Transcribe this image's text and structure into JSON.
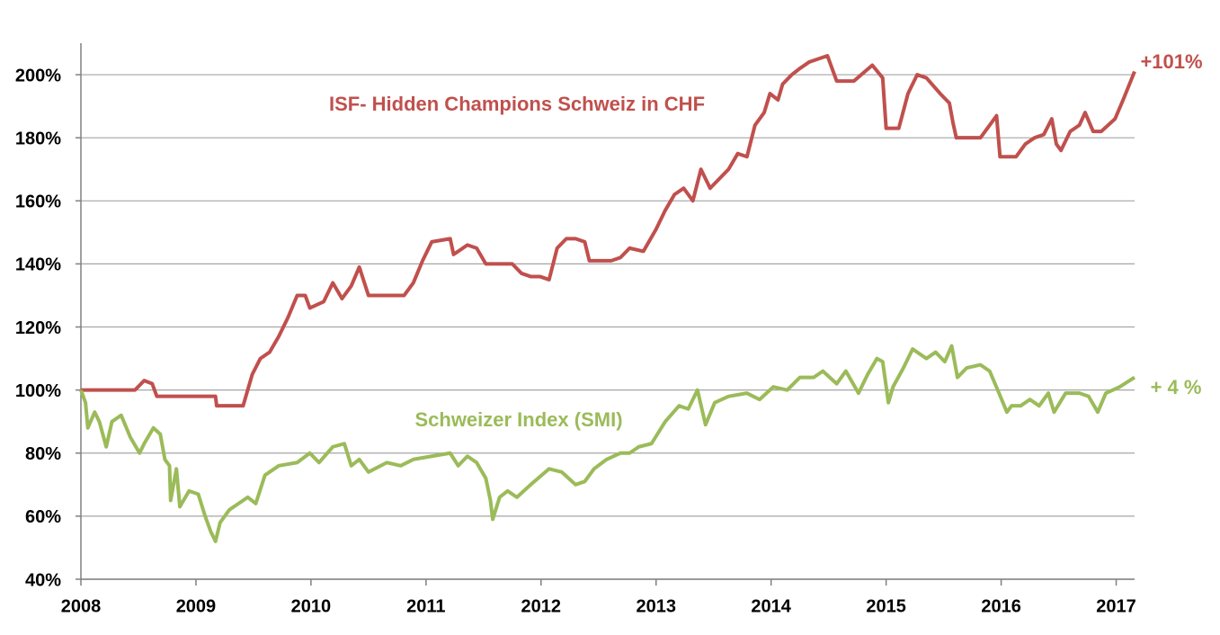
{
  "chart_data": {
    "type": "line",
    "xlim": [
      2008,
      2017.16
    ],
    "xticks": [
      2008,
      2009,
      2010,
      2011,
      2012,
      2013,
      2014,
      2015,
      2016,
      2017
    ],
    "ylim": [
      40,
      210
    ],
    "yticks": [
      {
        "value": 40,
        "label": "40%"
      },
      {
        "value": 60,
        "label": "60%"
      },
      {
        "value": 80,
        "label": "80%"
      },
      {
        "value": 100,
        "label": "100%"
      },
      {
        "value": 120,
        "label": "120%"
      },
      {
        "value": 140,
        "label": "140%"
      },
      {
        "value": 160,
        "label": "160%"
      },
      {
        "value": 180,
        "label": "180%"
      },
      {
        "value": 200,
        "label": "200%"
      }
    ],
    "grid": true,
    "series": [
      {
        "name": "ISF- Hidden Champions Schweiz in CHF",
        "color": "#c0504d",
        "x": [
          2008.0,
          2008.47,
          2008.55,
          2008.62,
          2008.66,
          2009.17,
          2009.18,
          2009.41,
          2009.49,
          2009.56,
          2009.64,
          2009.72,
          2009.8,
          2009.88,
          2009.95,
          2009.99,
          2010.11,
          2010.19,
          2010.27,
          2010.35,
          2010.42,
          2010.5,
          2010.74,
          2010.81,
          2010.89,
          2010.97,
          2011.05,
          2011.21,
          2011.24,
          2011.36,
          2011.44,
          2011.52,
          2011.75,
          2011.83,
          2011.91,
          2011.99,
          2012.07,
          2012.14,
          2012.22,
          2012.3,
          2012.38,
          2012.42,
          2012.61,
          2012.69,
          2012.77,
          2012.89,
          2013.0,
          2013.08,
          2013.16,
          2013.24,
          2013.32,
          2013.39,
          2013.47,
          2013.55,
          2013.63,
          2013.71,
          2013.79,
          2013.86,
          2013.94,
          2013.99,
          2014.06,
          2014.1,
          2014.18,
          2014.25,
          2014.33,
          2014.41,
          2014.49,
          2014.57,
          2014.72,
          2014.88,
          2014.97,
          2015.0,
          2015.11,
          2015.19,
          2015.27,
          2015.35,
          2015.47,
          2015.55,
          2015.58,
          2015.61,
          2015.82,
          2015.9,
          2015.96,
          2015.99,
          2016.13,
          2016.21,
          2016.29,
          2016.37,
          2016.44,
          2016.48,
          2016.52,
          2016.6,
          2016.68,
          2016.73,
          2016.8,
          2016.87,
          2016.99,
          2017.06,
          2017.16
        ],
        "values": [
          100,
          100,
          103,
          102,
          98,
          98,
          95,
          95,
          105,
          110,
          112,
          117,
          123,
          130,
          130,
          126,
          128,
          134,
          129,
          133,
          139,
          130,
          130,
          130,
          134,
          141,
          147,
          148,
          143,
          146,
          145,
          140,
          140,
          137,
          136,
          136,
          135,
          145,
          148,
          148,
          147,
          141,
          141,
          142,
          145,
          144,
          151,
          157,
          162,
          164,
          160,
          170,
          164,
          167,
          170,
          175,
          174,
          184,
          188,
          194,
          192,
          197,
          200,
          202,
          204,
          205,
          206,
          198,
          198,
          203,
          199,
          183,
          183,
          194,
          200,
          199,
          194,
          191,
          185,
          180,
          180,
          184,
          187,
          174,
          174,
          178,
          180,
          181,
          186,
          178,
          176,
          182,
          184,
          188,
          182,
          182,
          186,
          192,
          201
        ]
      },
      {
        "name": "Schweizer Index (SMI)",
        "color": "#9bbb59",
        "x": [
          2008.0,
          2008.04,
          2008.06,
          2008.12,
          2008.16,
          2008.22,
          2008.27,
          2008.35,
          2008.43,
          2008.51,
          2008.55,
          2008.63,
          2008.69,
          2008.73,
          2008.77,
          2008.78,
          2008.83,
          2008.86,
          2008.94,
          2009.02,
          2009.08,
          2009.13,
          2009.17,
          2009.21,
          2009.29,
          2009.37,
          2009.45,
          2009.52,
          2009.6,
          2009.72,
          2009.88,
          2009.99,
          2010.07,
          2010.19,
          2010.29,
          2010.35,
          2010.42,
          2010.5,
          2010.66,
          2010.78,
          2010.89,
          2011.05,
          2011.21,
          2011.28,
          2011.36,
          2011.44,
          2011.52,
          2011.56,
          2011.58,
          2011.64,
          2011.71,
          2011.79,
          2011.91,
          2012.07,
          2012.18,
          2012.3,
          2012.38,
          2012.46,
          2012.57,
          2012.69,
          2012.77,
          2012.85,
          2012.96,
          2013.08,
          2013.2,
          2013.28,
          2013.36,
          2013.43,
          2013.51,
          2013.63,
          2013.79,
          2013.9,
          2014.02,
          2014.14,
          2014.25,
          2014.37,
          2014.45,
          2014.57,
          2014.65,
          2014.76,
          2014.84,
          2014.92,
          2014.97,
          2015.02,
          2015.06,
          2015.15,
          2015.23,
          2015.35,
          2015.43,
          2015.51,
          2015.57,
          2015.62,
          2015.7,
          2015.82,
          2015.9,
          2015.97,
          2016.05,
          2016.09,
          2016.17,
          2016.25,
          2016.33,
          2016.41,
          2016.46,
          2016.56,
          2016.68,
          2016.76,
          2016.84,
          2016.91,
          2017.03,
          2017.16
        ],
        "values": [
          100,
          96,
          88,
          93,
          90,
          82,
          90,
          92,
          85,
          80,
          83,
          88,
          86,
          78,
          76,
          65,
          75,
          63,
          68,
          67,
          60,
          55,
          52,
          58,
          62,
          64,
          66,
          64,
          73,
          76,
          77,
          80,
          77,
          82,
          83,
          76,
          78,
          74,
          77,
          76,
          78,
          79,
          80,
          76,
          79,
          77,
          72,
          65,
          59,
          66,
          68,
          66,
          70,
          75,
          74,
          70,
          71,
          75,
          78,
          80,
          80,
          82,
          83,
          90,
          95,
          94,
          100,
          89,
          96,
          98,
          99,
          97,
          101,
          100,
          104,
          104,
          106,
          102,
          106,
          99,
          105,
          110,
          109,
          96,
          101,
          107,
          113,
          110,
          112,
          109,
          114,
          104,
          107,
          108,
          106,
          100,
          93,
          95,
          95,
          97,
          95,
          99,
          93,
          99,
          99,
          98,
          93,
          99,
          101,
          104
        ]
      }
    ],
    "annotations": [
      {
        "text": "+101%",
        "color": "#c0504d"
      },
      {
        "text": "+ 4 %",
        "color": "#9bbb59"
      }
    ]
  }
}
